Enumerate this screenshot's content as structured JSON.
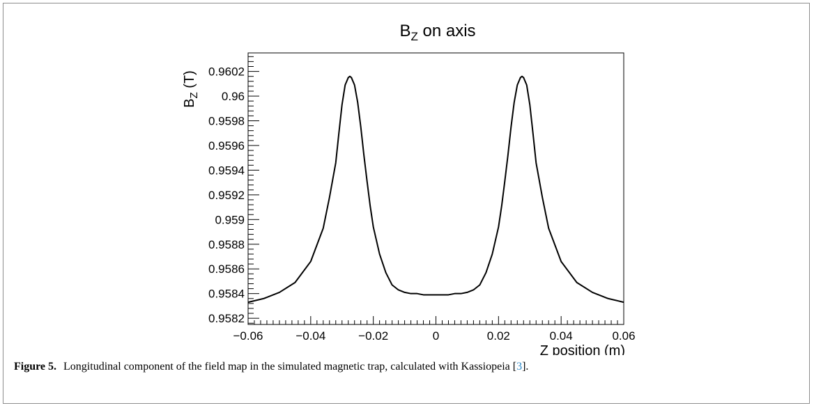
{
  "chart_data": {
    "type": "line",
    "title_main": "B",
    "title_sub": "Z",
    "title_rest": " on axis",
    "ylabel_main": "B",
    "ylabel_sub": "Z",
    "ylabel_rest": " (T)",
    "xlabel": "Z position (m)",
    "xlim": [
      -0.06,
      0.06
    ],
    "ylim": [
      0.95815,
      0.96035
    ],
    "xticks": [
      {
        "value": -0.06,
        "label": "−0.06"
      },
      {
        "value": -0.04,
        "label": "−0.04"
      },
      {
        "value": -0.02,
        "label": "−0.02"
      },
      {
        "value": 0,
        "label": "0"
      },
      {
        "value": 0.02,
        "label": "0.02"
      },
      {
        "value": 0.04,
        "label": "0.04"
      },
      {
        "value": 0.06,
        "label": "0.06"
      }
    ],
    "yticks": [
      {
        "value": 0.9582,
        "label": "0.9582"
      },
      {
        "value": 0.9584,
        "label": "0.9584"
      },
      {
        "value": 0.9586,
        "label": "0.9586"
      },
      {
        "value": 0.9588,
        "label": "0.9588"
      },
      {
        "value": 0.959,
        "label": "0.959"
      },
      {
        "value": 0.9592,
        "label": "0.9592"
      },
      {
        "value": 0.9594,
        "label": "0.9594"
      },
      {
        "value": 0.9596,
        "label": "0.9596"
      },
      {
        "value": 0.9598,
        "label": "0.9598"
      },
      {
        "value": 0.96,
        "label": "0.96"
      },
      {
        "value": 0.9602,
        "label": "0.9602"
      }
    ],
    "series": [
      {
        "x": [
          -0.06,
          -0.055,
          -0.05,
          -0.045,
          -0.04,
          -0.036,
          -0.034,
          -0.032,
          -0.031,
          -0.03,
          -0.029,
          -0.028,
          -0.0275,
          -0.027,
          -0.026,
          -0.025,
          -0.024,
          -0.023,
          -0.022,
          -0.021,
          -0.02,
          -0.018,
          -0.016,
          -0.014,
          -0.012,
          -0.01,
          -0.008,
          -0.006,
          -0.004,
          -0.002,
          0,
          0.002,
          0.004,
          0.006,
          0.008,
          0.01,
          0.012,
          0.014,
          0.016,
          0.018,
          0.02,
          0.021,
          0.022,
          0.023,
          0.024,
          0.025,
          0.026,
          0.027,
          0.0275,
          0.028,
          0.029,
          0.03,
          0.031,
          0.032,
          0.034,
          0.036,
          0.04,
          0.045,
          0.05,
          0.055,
          0.06
        ],
        "y": [
          0.95833,
          0.95836,
          0.95841,
          0.95849,
          0.95866,
          0.95893,
          0.95918,
          0.95946,
          0.9597,
          0.95993,
          0.96009,
          0.96015,
          0.96016,
          0.96015,
          0.96009,
          0.95995,
          0.95975,
          0.95952,
          0.95931,
          0.95911,
          0.95894,
          0.95872,
          0.95857,
          0.95847,
          0.95843,
          0.95841,
          0.9584,
          0.9584,
          0.95839,
          0.95839,
          0.95839,
          0.95839,
          0.95839,
          0.9584,
          0.9584,
          0.95841,
          0.95843,
          0.95847,
          0.95857,
          0.95872,
          0.95894,
          0.95911,
          0.95931,
          0.95952,
          0.95975,
          0.95995,
          0.96009,
          0.96015,
          0.96016,
          0.96015,
          0.96009,
          0.95993,
          0.9597,
          0.95946,
          0.95918,
          0.95893,
          0.95866,
          0.95849,
          0.95841,
          0.95836,
          0.95833
        ]
      }
    ],
    "grid": false,
    "legend": "none"
  },
  "caption": {
    "label": "Figure 5.",
    "text": " Longitudinal component of the field map in the simulated magnetic trap, calculated with Kassiopeia [",
    "cite": "3",
    "end": "]."
  }
}
